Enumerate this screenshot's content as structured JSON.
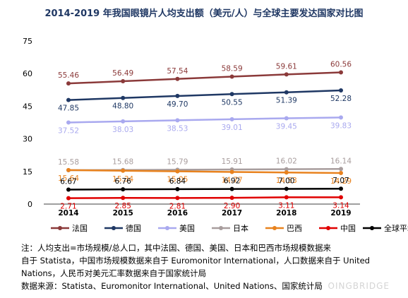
{
  "chart_data": {
    "type": "line",
    "title": "2014-2019 年我国眼镜片人均支出额（美元/人）与全球主要发达国家对比图",
    "x": [
      "2014",
      "2015",
      "2016",
      "2017",
      "2018",
      "2019"
    ],
    "ylim": [
      0,
      75
    ],
    "yticks": [
      "0",
      "15",
      "30",
      "45",
      "60",
      "75"
    ],
    "grid": false,
    "legend_position": "bottom",
    "series": [
      {
        "name": "法国",
        "color": "#8b3a3a",
        "values": [
          55.46,
          56.49,
          57.54,
          58.59,
          59.61,
          60.56
        ],
        "labels": [
          "55.46",
          "56.49",
          "57.54",
          "58.59",
          "59.61",
          "60.56"
        ],
        "label_pos": "above"
      },
      {
        "name": "德国",
        "color": "#1f3864",
        "values": [
          47.85,
          48.8,
          49.7,
          50.55,
          51.39,
          52.28
        ],
        "labels": [
          "47.85",
          "48.80",
          "49.70",
          "50.55",
          "51.39",
          "52.28"
        ],
        "label_pos": "below"
      },
      {
        "name": "美国",
        "color": "#a9a9ef",
        "values": [
          37.52,
          38.03,
          38.53,
          39.01,
          39.45,
          39.83
        ],
        "labels": [
          "37.52",
          "38.03",
          "38.53",
          "39.01",
          "39.45",
          "39.83"
        ],
        "label_pos": "below"
      },
      {
        "name": "日本",
        "color": "#a89d9d",
        "values": [
          15.58,
          15.68,
          15.79,
          15.91,
          16.02,
          16.14
        ],
        "labels": [
          "15.58",
          "15.68",
          "15.79",
          "15.91",
          "16.02",
          "16.14"
        ],
        "label_pos": "above"
      },
      {
        "name": "巴西",
        "color": "#e8821e",
        "values": [
          15.64,
          15.34,
          15.05,
          14.77,
          14.53,
          14.29
        ],
        "labels": [
          "15.64",
          "15.34",
          "15.05",
          "14.77",
          "14.53",
          "14.29"
        ],
        "label_pos": "below"
      },
      {
        "name": "中国",
        "color": "#e00000",
        "values": [
          2.71,
          2.85,
          2.81,
          2.9,
          3.11,
          3.14
        ],
        "labels": [
          "2.71",
          "2.85",
          "2.81",
          "2.90",
          "3.11",
          "3.14"
        ],
        "label_pos": "below"
      },
      {
        "name": "全球平均",
        "color": "#000000",
        "values": [
          6.67,
          6.76,
          6.84,
          6.92,
          7.0,
          7.07
        ],
        "labels": [
          "6.67",
          "6.76",
          "6.84",
          "6.92",
          "7.00",
          "7.07"
        ],
        "label_pos": "above"
      }
    ]
  },
  "notes": {
    "line1": "注：人均支出=市场规模/总人口，其中法国、德国、美国、日本和巴西市场规模数据来",
    "line2": "自于 Statista，中国市场规模数据来自于 Euromonitor International，人口数据来自于 United",
    "line3": "Nations，人民币对美元汇率数据来自于国家统计局",
    "line4": "数据来源：Statista、Euromonitor International、United Nations、国家统计局"
  },
  "watermark": "OINGBRIDGE"
}
